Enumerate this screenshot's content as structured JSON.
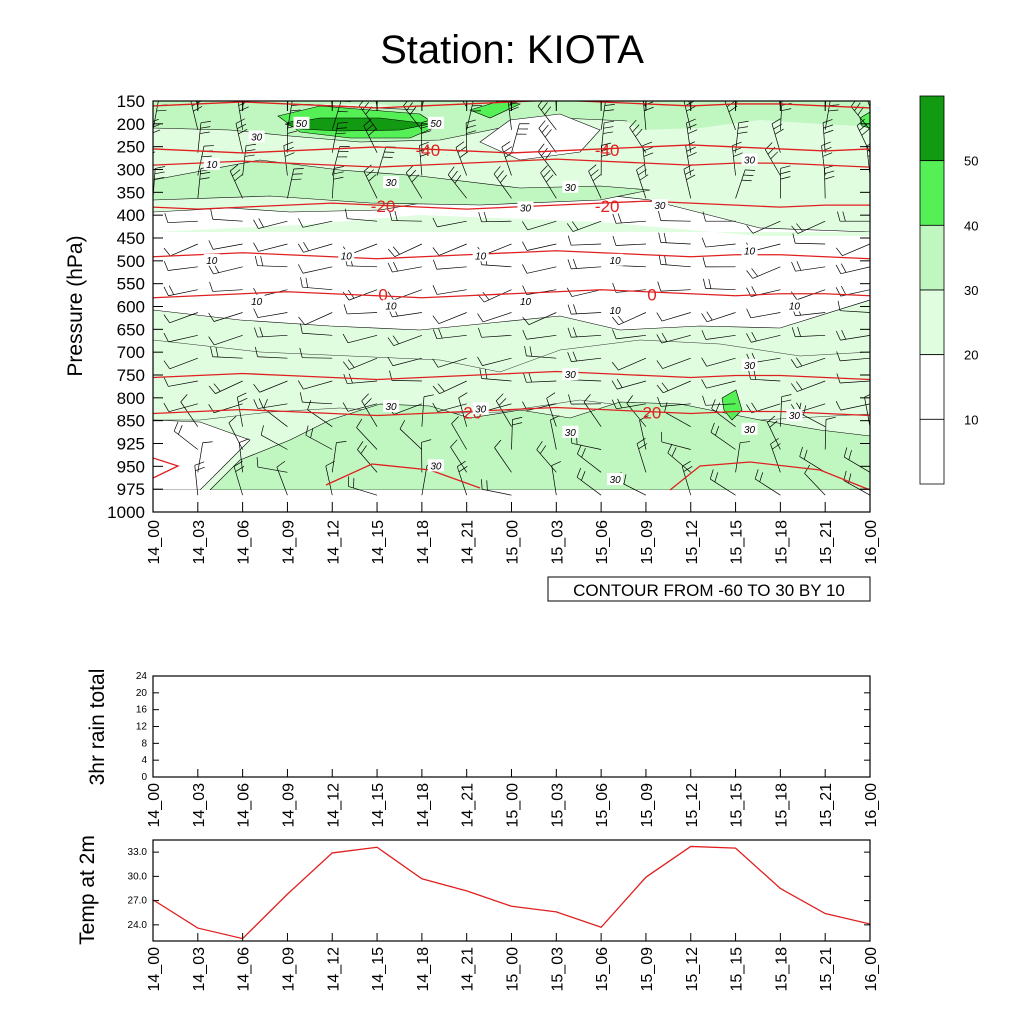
{
  "title": "Station: KIOTA",
  "time_labels": [
    "14_00",
    "14_03",
    "14_06",
    "14_09",
    "14_12",
    "14_15",
    "14_18",
    "14_21",
    "15_00",
    "15_03",
    "15_06",
    "15_09",
    "15_12",
    "15_15",
    "15_18",
    "15_21",
    "16_00"
  ],
  "colors": {
    "fill_levels": [
      "#ffffff",
      "#ffffff",
      "#e0fde0",
      "#c0f7c0",
      "#55f055",
      "#139a13"
    ],
    "temp_line": "#e02020",
    "contour_line": "#000000"
  },
  "chart_data": [
    {
      "type": "contour",
      "name": "upper-air wind speed",
      "ylabel": "Pressure (hPa)",
      "y_ticks": [
        150,
        200,
        250,
        300,
        350,
        400,
        450,
        500,
        550,
        600,
        650,
        700,
        750,
        800,
        850,
        925,
        950,
        975,
        1000
      ],
      "x": [
        "14_00",
        "14_03",
        "14_06",
        "14_09",
        "14_12",
        "14_15",
        "14_18",
        "14_21",
        "15_00",
        "15_03",
        "15_06",
        "15_09",
        "15_12",
        "15_15",
        "15_18",
        "15_21",
        "16_00"
      ],
      "contour_label": "CONTOUR FROM -60 TO 30 BY 10",
      "colorbar": {
        "levels": [
          10,
          20,
          30,
          40,
          50
        ]
      },
      "wind_speed_labels": [
        {
          "text": "50",
          "x": "14_09",
          "p": 200
        },
        {
          "text": "50",
          "x": "14_18",
          "p": 200
        },
        {
          "text": "30",
          "x": "14_06",
          "p": 230
        },
        {
          "text": "30",
          "x": "14_15",
          "p": 330
        },
        {
          "text": "30",
          "x": "15_03",
          "p": 340
        },
        {
          "text": "30",
          "x": "15_00",
          "p": 385
        },
        {
          "text": "30",
          "x": "15_09",
          "p": 380
        },
        {
          "text": "30",
          "x": "15_15",
          "p": 280
        },
        {
          "text": "10",
          "x": "14_03",
          "p": 290
        },
        {
          "text": "10",
          "x": "14_03",
          "p": 500
        },
        {
          "text": "10",
          "x": "14_12",
          "p": 490
        },
        {
          "text": "10",
          "x": "14_21",
          "p": 490
        },
        {
          "text": "10",
          "x": "15_06",
          "p": 500
        },
        {
          "text": "10",
          "x": "15_15",
          "p": 480
        },
        {
          "text": "10",
          "x": "14_06",
          "p": 590
        },
        {
          "text": "10",
          "x": "14_15",
          "p": 600
        },
        {
          "text": "10",
          "x": "15_00",
          "p": 590
        },
        {
          "text": "10",
          "x": "15_06",
          "p": 610
        },
        {
          "text": "10",
          "x": "15_18",
          "p": 600
        },
        {
          "text": "30",
          "x": "15_03",
          "p": 750
        },
        {
          "text": "30",
          "x": "15_15",
          "p": 730
        },
        {
          "text": "30",
          "x": "14_15",
          "p": 820
        },
        {
          "text": "30",
          "x": "14_21",
          "p": 825
        },
        {
          "text": "30",
          "x": "15_18",
          "p": 840
        },
        {
          "text": "30",
          "x": "15_03",
          "p": 890
        },
        {
          "text": "30",
          "x": "15_15",
          "p": 880
        },
        {
          "text": "30",
          "x": "14_18",
          "p": 950
        },
        {
          "text": "30",
          "x": "15_06",
          "p": 965
        }
      ],
      "temperature_contours": [
        {
          "value": -40,
          "p": 255,
          "labels": [
            {
              "text": "-40",
              "x": "14_18"
            },
            {
              "text": "-40",
              "x": "15_06"
            }
          ]
        },
        {
          "value": -20,
          "p": 378,
          "labels": [
            {
              "text": "-20",
              "x": "14_15"
            },
            {
              "text": "-20",
              "x": "15_06"
            }
          ]
        },
        {
          "value": 0,
          "p": 572,
          "labels": [
            {
              "text": "0",
              "x": "14_15"
            },
            {
              "text": "0",
              "x": "15_09"
            }
          ]
        },
        {
          "value": 20,
          "p": 830,
          "labels": [
            {
              "text": "20",
              "x": "14_21"
            },
            {
              "text": "20",
              "x": "15_09"
            }
          ]
        }
      ]
    },
    {
      "type": "bar",
      "name": "3hr rain",
      "ylabel": "3hr rain total",
      "ylim": [
        0,
        24
      ],
      "y_ticks": [
        0,
        4,
        8,
        12,
        16,
        20,
        24
      ],
      "x": [
        "14_00",
        "14_03",
        "14_06",
        "14_09",
        "14_12",
        "14_15",
        "14_18",
        "14_21",
        "15_00",
        "15_03",
        "15_06",
        "15_09",
        "15_12",
        "15_15",
        "15_18",
        "15_21",
        "16_00"
      ],
      "values": [
        0,
        0,
        0,
        0,
        0,
        0,
        0,
        0,
        0,
        0,
        0,
        0,
        0,
        0,
        0,
        0,
        0
      ]
    },
    {
      "type": "line",
      "name": "2m temperature",
      "ylabel": "Temp at 2m",
      "ylim": [
        22.0,
        34.5
      ],
      "y_ticks": [
        "24.0",
        "27.0",
        "30.0",
        "33.0"
      ],
      "x": [
        "14_00",
        "14_03",
        "14_06",
        "14_09",
        "14_12",
        "14_15",
        "14_18",
        "14_21",
        "15_00",
        "15_03",
        "15_06",
        "15_09",
        "15_12",
        "15_15",
        "15_18",
        "15_21",
        "16_00"
      ],
      "values": [
        27.1,
        23.6,
        22.3,
        27.8,
        32.9,
        33.6,
        29.7,
        28.2,
        26.3,
        25.6,
        23.7,
        29.9,
        33.7,
        33.5,
        28.5,
        25.4,
        24.1
      ]
    }
  ]
}
